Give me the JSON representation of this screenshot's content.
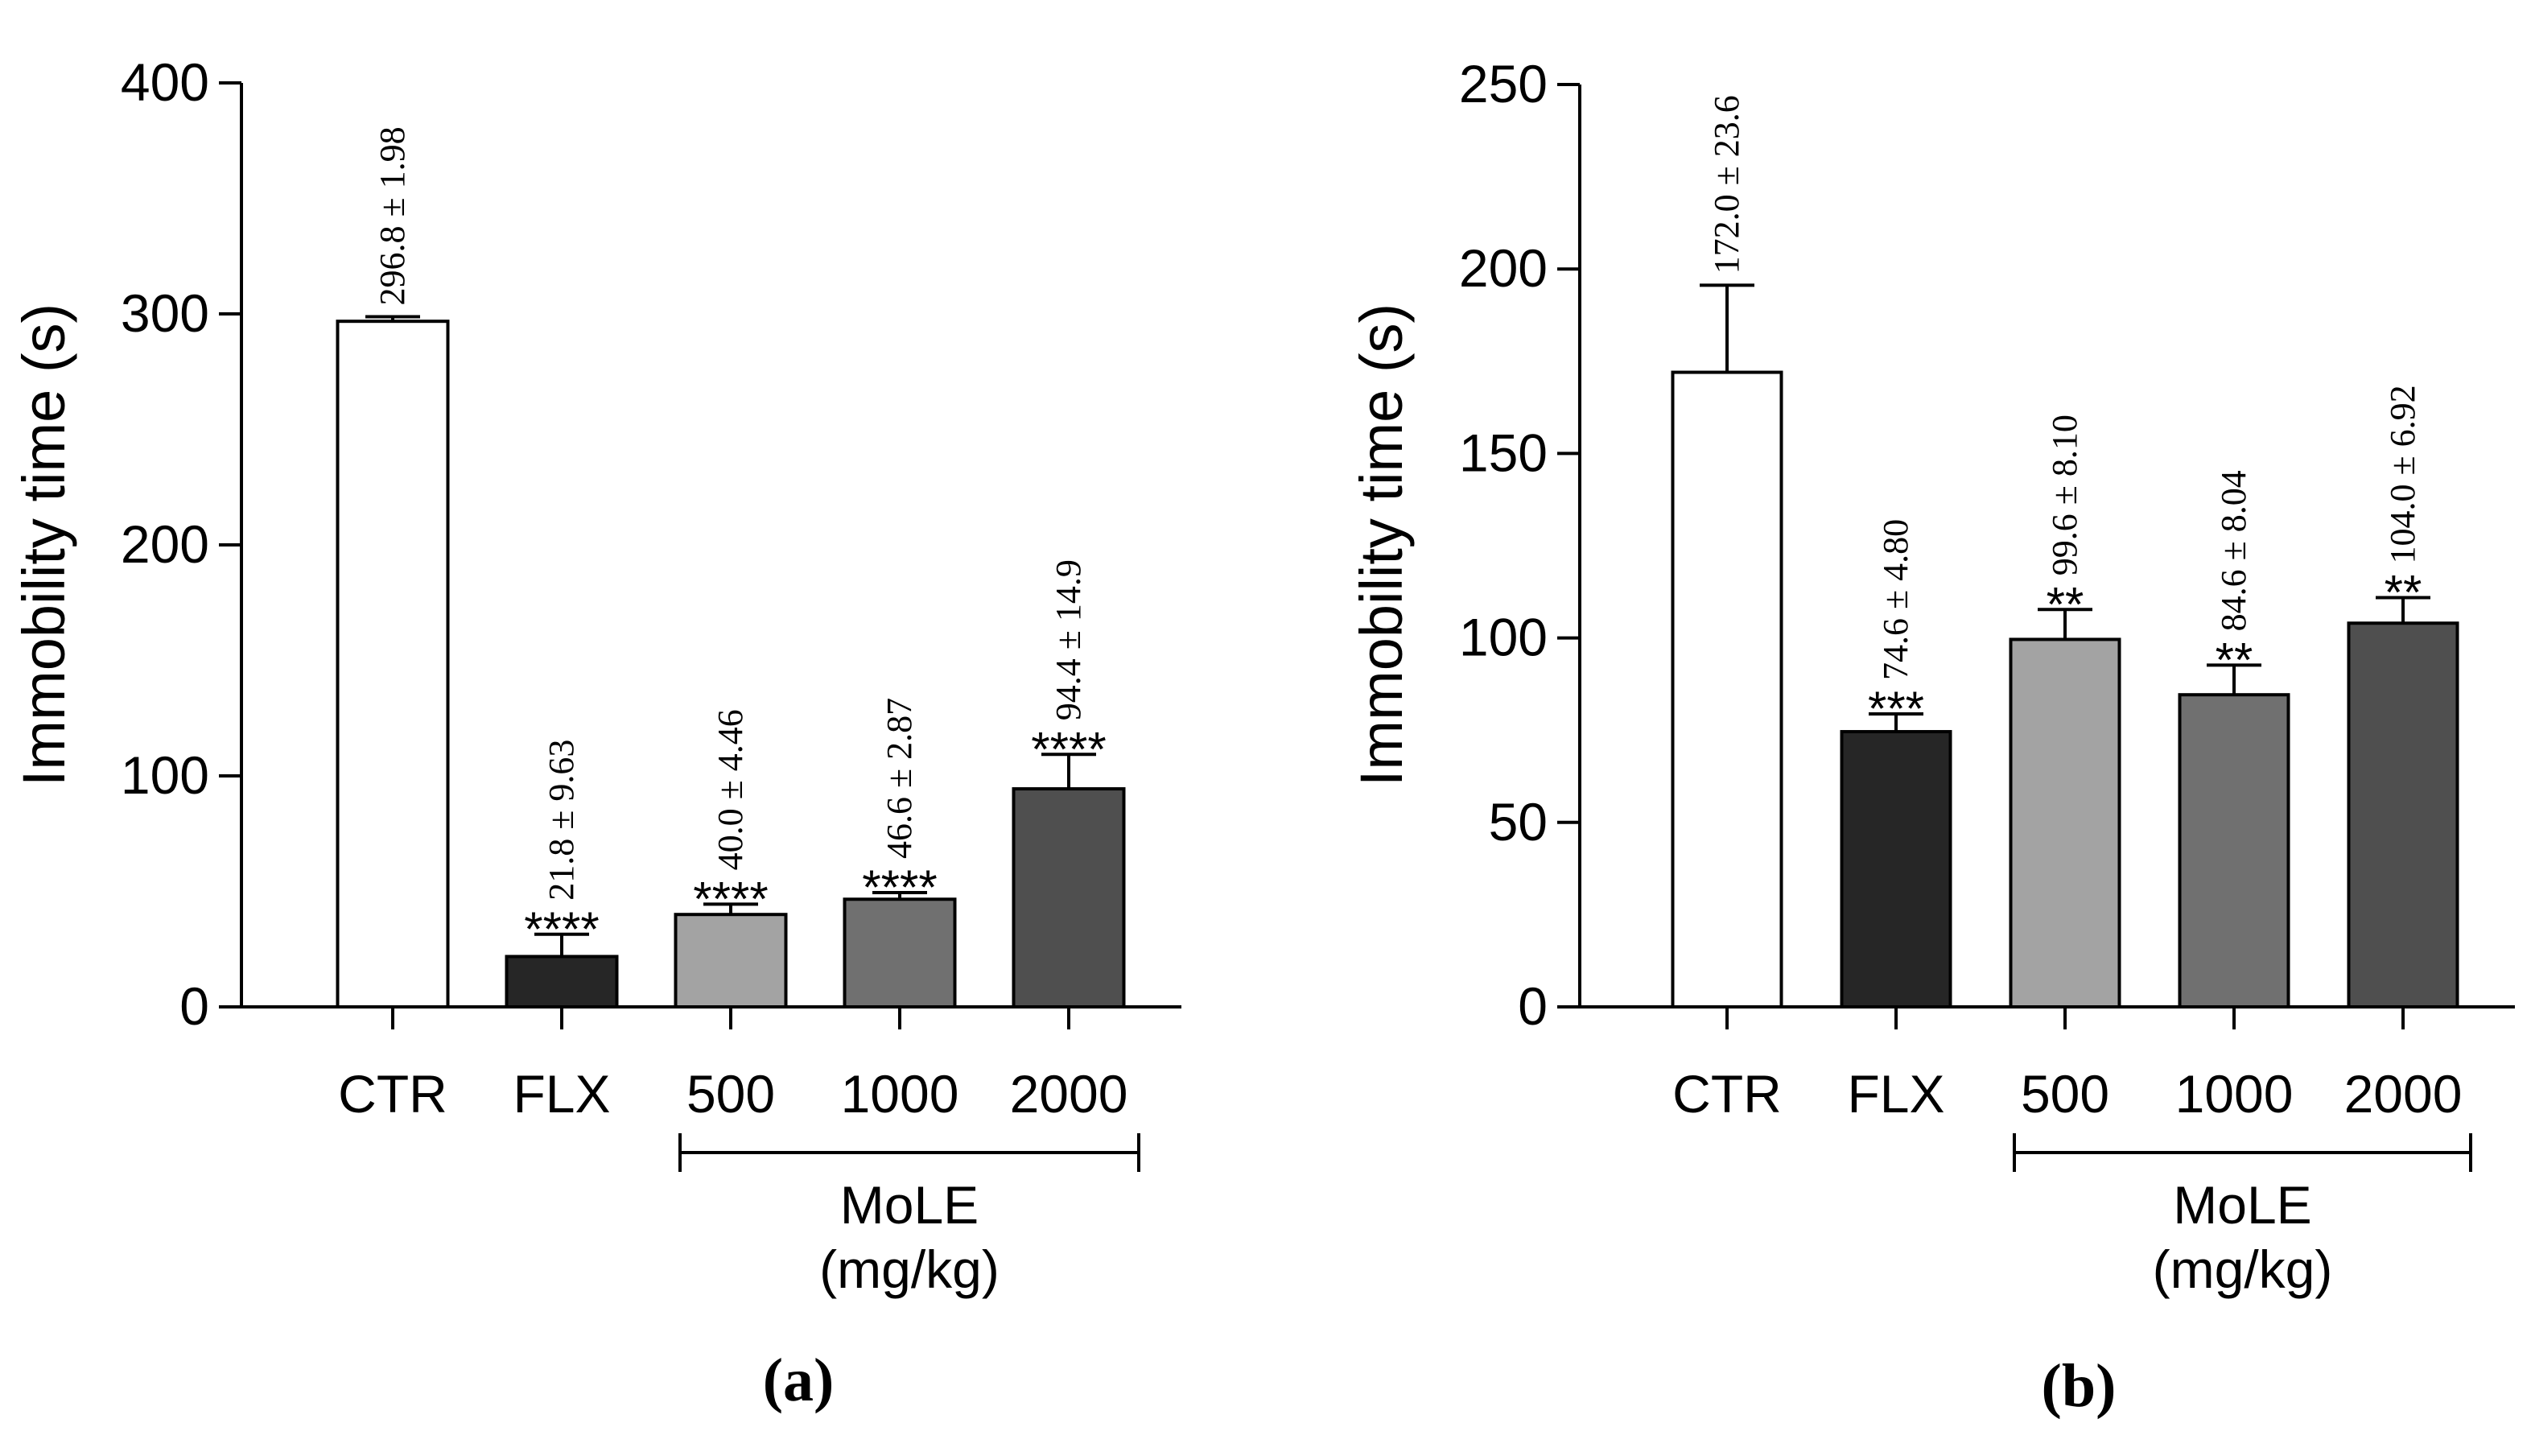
{
  "chart_data": [
    {
      "panel_label": "(a)",
      "type": "bar",
      "ylabel": "Immobility time (s)",
      "ylim": [
        0,
        400
      ],
      "yticks": [
        0,
        100,
        200,
        300,
        400
      ],
      "categories": [
        "CTR",
        "FLX",
        "500",
        "1000",
        "2000"
      ],
      "values": [
        296.8,
        21.8,
        40.0,
        46.6,
        94.4
      ],
      "errors": [
        1.98,
        9.63,
        4.46,
        2.87,
        14.9
      ],
      "value_labels": [
        "296.8 ± 1.98",
        "21.8 ± 9.63",
        "40.0 ± 4.46",
        "46.6 ± 2.87",
        "94.4 ± 14.9"
      ],
      "significance": [
        "",
        "****",
        "****",
        "****",
        "****"
      ],
      "bar_colors": [
        "#ffffff",
        "#262626",
        "#a3a3a3",
        "#707070",
        "#4f4f4f"
      ],
      "group_bracket": {
        "from_index": 2,
        "to_index": 4,
        "label_line1": "MoLE",
        "label_line2": "(mg/kg)"
      }
    },
    {
      "panel_label": "(b)",
      "type": "bar",
      "ylabel": "Immobility time (s)",
      "ylim": [
        0,
        250
      ],
      "yticks": [
        0,
        50,
        100,
        150,
        200,
        250
      ],
      "categories": [
        "CTR",
        "FLX",
        "500",
        "1000",
        "2000"
      ],
      "values": [
        172.0,
        74.6,
        99.6,
        84.6,
        104.0
      ],
      "errors": [
        23.6,
        4.8,
        8.1,
        8.04,
        6.92
      ],
      "value_labels": [
        "172.0 ± 23.6",
        "74.6 ± 4.80",
        "99.6 ± 8.10",
        "84.6 ± 8.04",
        "104.0 ± 6.92"
      ],
      "significance": [
        "",
        "***",
        "**",
        "**",
        "**"
      ],
      "bar_colors": [
        "#ffffff",
        "#262626",
        "#a3a3a3",
        "#707070",
        "#4f4f4f"
      ],
      "group_bracket": {
        "from_index": 2,
        "to_index": 4,
        "label_line1": "MoLE",
        "label_line2": "(mg/kg)"
      }
    }
  ]
}
